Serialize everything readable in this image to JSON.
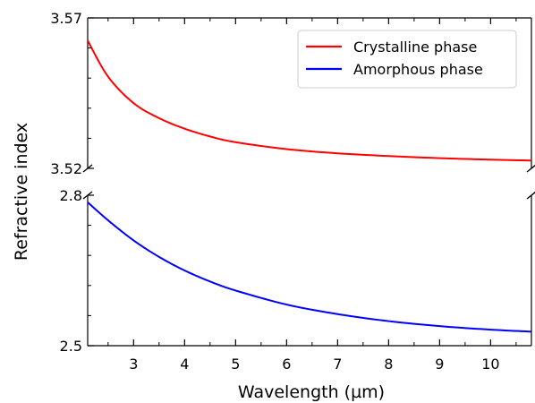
{
  "chart_data": {
    "type": "line",
    "broken_y_axis": true,
    "xlabel": "Wavelength (µm)",
    "ylabel": "Refractive index",
    "xlim": [
      2.1,
      10.8
    ],
    "x_ticks": [
      3,
      4,
      5,
      6,
      7,
      8,
      9,
      10
    ],
    "x_tick_labels": [
      "3",
      "4",
      "5",
      "6",
      "7",
      "8",
      "9",
      "10"
    ],
    "panels": [
      {
        "id": "upper",
        "ylim": [
          3.52,
          3.57
        ],
        "y_tick_labels": [
          {
            "value": 3.57,
            "label": "3.57"
          },
          {
            "value": 3.52,
            "label": "3.52"
          }
        ],
        "series": [
          "Crystalline phase"
        ]
      },
      {
        "id": "lower",
        "ylim": [
          2.5,
          2.8
        ],
        "y_tick_labels": [
          {
            "value": 2.8,
            "label": "2.8"
          },
          {
            "value": 2.5,
            "label": "2.5"
          }
        ],
        "series": [
          "Amorphous phase"
        ]
      }
    ],
    "legend": {
      "position": "top-right"
    },
    "series": [
      {
        "name": "Crystalline phase",
        "color": "#ff0000",
        "panel": "upper",
        "x": [
          2.1,
          2.5,
          3,
          3.5,
          4,
          4.5,
          5,
          6,
          7,
          8,
          9,
          10,
          10.8
        ],
        "y": [
          3.5625,
          3.5505,
          3.5417,
          3.5367,
          3.5332,
          3.5306,
          3.5287,
          3.5264,
          3.525,
          3.5241,
          3.5234,
          3.5229,
          3.5226
        ]
      },
      {
        "name": "Amorphous phase",
        "color": "#0000ff",
        "panel": "lower",
        "x": [
          2.1,
          2.5,
          3,
          3.5,
          4,
          4.5,
          5,
          6,
          7,
          8,
          9,
          10,
          10.8
        ],
        "y": [
          2.786,
          2.75,
          2.71,
          2.677,
          2.65,
          2.628,
          2.61,
          2.582,
          2.563,
          2.549,
          2.539,
          2.532,
          2.528
        ]
      }
    ]
  }
}
